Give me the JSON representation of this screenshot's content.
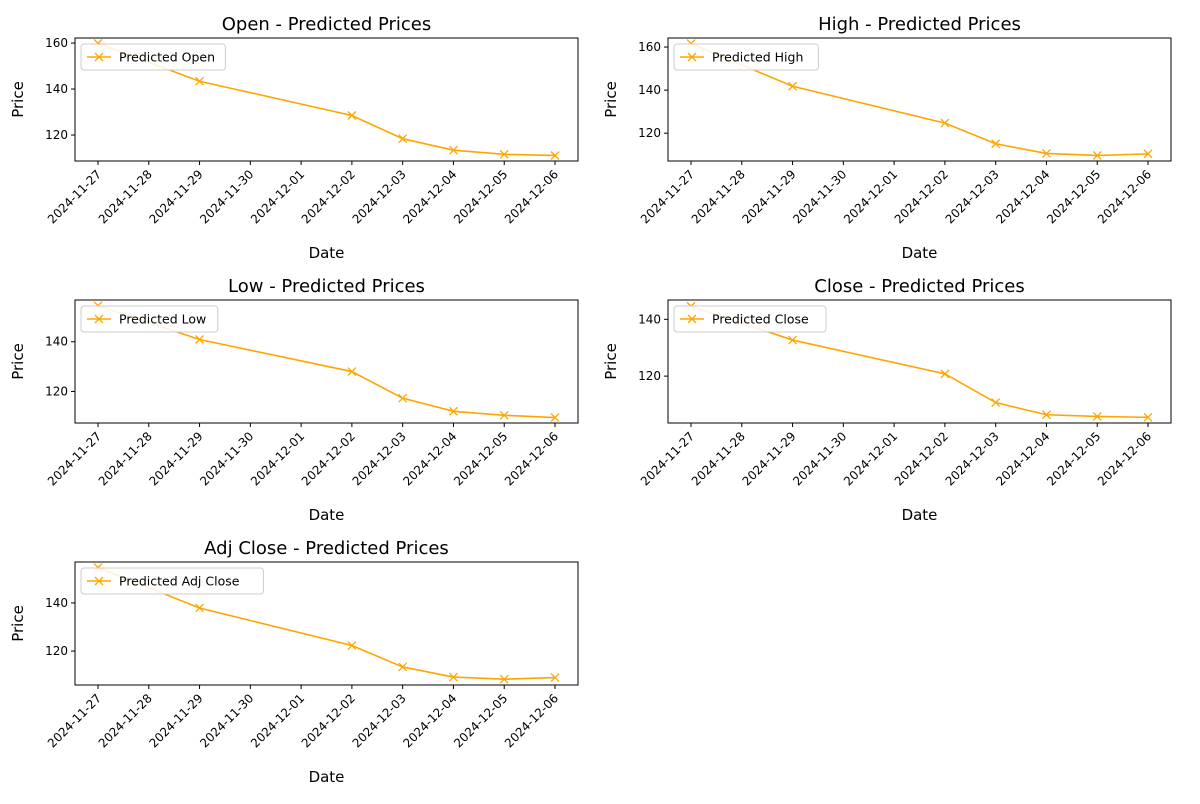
{
  "figure": {
    "line_color": "#ffa500",
    "legend_position": "upper-left",
    "grid": false
  },
  "chart_data": [
    {
      "type": "line",
      "title": "Open - Predicted Prices",
      "xlabel": "Date",
      "ylabel": "Price",
      "x": [
        "2024-11-27",
        "2024-11-28",
        "2024-11-29",
        "2024-11-30",
        "2024-12-01",
        "2024-12-02",
        "2024-12-03",
        "2024-12-04",
        "2024-12-05",
        "2024-12-06"
      ],
      "ylim": [
        108.7,
        162.2
      ],
      "yticks": [
        120,
        140,
        160
      ],
      "series": [
        {
          "name": "Predicted Open",
          "marker": "x",
          "points": [
            {
              "x": "2024-11-27",
              "y": 159.9
            },
            {
              "x": "2024-11-29",
              "y": 143.4
            },
            {
              "x": "2024-12-02",
              "y": 128.5
            },
            {
              "x": "2024-12-03",
              "y": 118.4
            },
            {
              "x": "2024-12-04",
              "y": 113.4
            },
            {
              "x": "2024-12-05",
              "y": 111.6
            },
            {
              "x": "2024-12-06",
              "y": 111.1
            }
          ]
        }
      ]
    },
    {
      "type": "line",
      "title": "High - Predicted Prices",
      "xlabel": "Date",
      "ylabel": "Price",
      "x": [
        "2024-11-27",
        "2024-11-28",
        "2024-11-29",
        "2024-11-30",
        "2024-12-01",
        "2024-12-02",
        "2024-12-03",
        "2024-12-04",
        "2024-12-05",
        "2024-12-06"
      ],
      "ylim": [
        107.1,
        164.2
      ],
      "yticks": [
        120,
        140,
        160
      ],
      "series": [
        {
          "name": "Predicted High",
          "marker": "x",
          "points": [
            {
              "x": "2024-11-27",
              "y": 161.6
            },
            {
              "x": "2024-11-29",
              "y": 141.8
            },
            {
              "x": "2024-12-02",
              "y": 124.7
            },
            {
              "x": "2024-12-03",
              "y": 115.1
            },
            {
              "x": "2024-12-04",
              "y": 110.6
            },
            {
              "x": "2024-12-05",
              "y": 109.7
            },
            {
              "x": "2024-12-06",
              "y": 110.4
            }
          ]
        }
      ]
    },
    {
      "type": "line",
      "title": "Low - Predicted Prices",
      "xlabel": "Date",
      "ylabel": "Price",
      "x": [
        "2024-11-27",
        "2024-11-28",
        "2024-11-29",
        "2024-11-30",
        "2024-12-01",
        "2024-12-02",
        "2024-12-03",
        "2024-12-04",
        "2024-12-05",
        "2024-12-06"
      ],
      "ylim": [
        107.3,
        156.8
      ],
      "yticks": [
        120,
        140
      ],
      "series": [
        {
          "name": "Predicted Low",
          "marker": "x",
          "points": [
            {
              "x": "2024-11-27",
              "y": 154.5
            },
            {
              "x": "2024-11-29",
              "y": 140.9
            },
            {
              "x": "2024-12-02",
              "y": 128.0
            },
            {
              "x": "2024-12-03",
              "y": 117.3
            },
            {
              "x": "2024-12-04",
              "y": 112.0
            },
            {
              "x": "2024-12-05",
              "y": 110.4
            },
            {
              "x": "2024-12-06",
              "y": 109.5
            }
          ]
        }
      ]
    },
    {
      "type": "line",
      "title": "Close - Predicted Prices",
      "xlabel": "Date",
      "ylabel": "Price",
      "x": [
        "2024-11-27",
        "2024-11-28",
        "2024-11-29",
        "2024-11-30",
        "2024-12-01",
        "2024-12-02",
        "2024-12-03",
        "2024-12-04",
        "2024-12-05",
        "2024-12-06"
      ],
      "ylim": [
        103.5,
        146.8
      ],
      "yticks": [
        120,
        140
      ],
      "series": [
        {
          "name": "Predicted Close",
          "marker": "x",
          "points": [
            {
              "x": "2024-11-27",
              "y": 144.6
            },
            {
              "x": "2024-11-29",
              "y": 132.7
            },
            {
              "x": "2024-12-02",
              "y": 120.8
            },
            {
              "x": "2024-12-03",
              "y": 110.7
            },
            {
              "x": "2024-12-04",
              "y": 106.4
            },
            {
              "x": "2024-12-05",
              "y": 105.8
            },
            {
              "x": "2024-12-06",
              "y": 105.5
            }
          ]
        }
      ]
    },
    {
      "type": "line",
      "title": "Adj Close - Predicted Prices",
      "xlabel": "Date",
      "ylabel": "Price",
      "x": [
        "2024-11-27",
        "2024-11-28",
        "2024-11-29",
        "2024-11-30",
        "2024-12-01",
        "2024-12-02",
        "2024-12-03",
        "2024-12-04",
        "2024-12-05",
        "2024-12-06"
      ],
      "ylim": [
        105.9,
        157.0
      ],
      "yticks": [
        120,
        140
      ],
      "series": [
        {
          "name": "Predicted Adj Close",
          "marker": "x",
          "points": [
            {
              "x": "2024-11-27",
              "y": 154.7
            },
            {
              "x": "2024-11-29",
              "y": 137.9
            },
            {
              "x": "2024-12-02",
              "y": 122.3
            },
            {
              "x": "2024-12-03",
              "y": 113.4
            },
            {
              "x": "2024-12-04",
              "y": 109.2
            },
            {
              "x": "2024-12-05",
              "y": 108.3
            },
            {
              "x": "2024-12-06",
              "y": 109.0
            }
          ]
        }
      ]
    }
  ]
}
